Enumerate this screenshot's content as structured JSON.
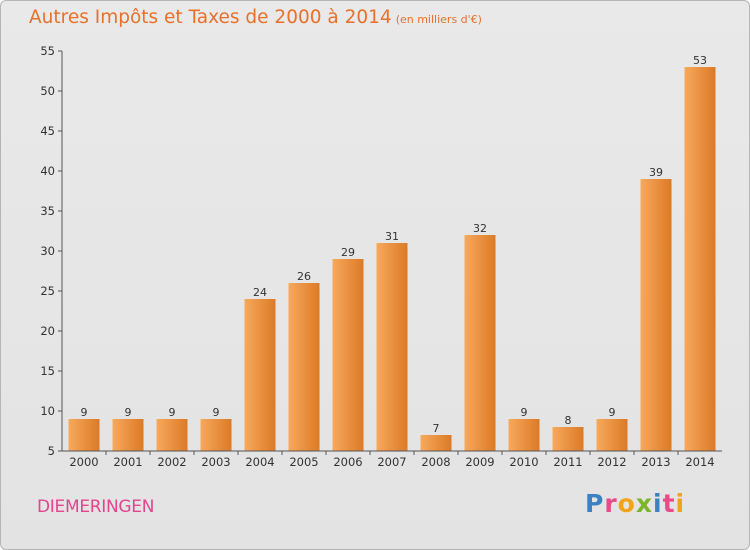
{
  "title": "Autres Impôts et Taxes de 2000 à 2014",
  "subtitle": "(en milliers d'€)",
  "location": "DIEMERINGEN",
  "logo": {
    "letters": [
      {
        "char": "P",
        "color": "#3b82c4"
      },
      {
        "char": "r",
        "color": "#e94b8a"
      },
      {
        "char": "o",
        "color": "#f3a21b"
      },
      {
        "char": "x",
        "color": "#7bb52a"
      },
      {
        "char": "i",
        "color": "#3b82c4"
      },
      {
        "char": "t",
        "color": "#e94b8a"
      },
      {
        "char": "i",
        "color": "#f3a21b"
      }
    ]
  },
  "colors": {
    "accent": "#e8702a",
    "bar_light": "#f7a95e",
    "bar_dark": "#db7a25",
    "axis": "#555555"
  },
  "chart_data": {
    "type": "bar",
    "categories": [
      "2000",
      "2001",
      "2002",
      "2003",
      "2004",
      "2005",
      "2006",
      "2007",
      "2008",
      "2009",
      "2010",
      "2011",
      "2012",
      "2013",
      "2014"
    ],
    "values": [
      9,
      9,
      9,
      9,
      24,
      26,
      29,
      31,
      7,
      32,
      9,
      8,
      9,
      39,
      53
    ],
    "ylim": [
      5,
      55
    ],
    "yticks": [
      5,
      10,
      15,
      20,
      25,
      30,
      35,
      40,
      45,
      50,
      55
    ],
    "grid": false,
    "xlabel": "",
    "ylabel": ""
  }
}
